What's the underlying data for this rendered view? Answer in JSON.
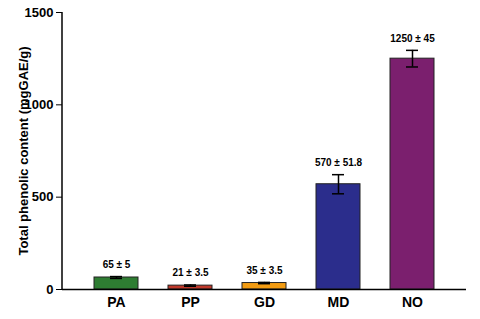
{
  "chart_data": {
    "type": "bar",
    "y_label": "Total phenolic content (mgGAE/g)",
    "categories": [
      "PA",
      "PP",
      "GD",
      "MD",
      "NO"
    ],
    "values": [
      65,
      21,
      35,
      570,
      1250
    ],
    "errors": [
      5,
      3.5,
      3.5,
      51.8,
      45
    ],
    "value_labels": [
      "65 ± 5",
      "21 ± 3.5",
      "35 ± 3.5",
      "570 ± 51.8",
      "1250 ± 45"
    ],
    "colors": [
      "#2e7d32",
      "#c0392b",
      "#f39c12",
      "#2b2d8c",
      "#7b1f6e"
    ],
    "data_labels": true,
    "ylim": [
      0,
      1500
    ],
    "yticks": [
      0,
      500,
      1000,
      1500
    ],
    "grid": false
  }
}
